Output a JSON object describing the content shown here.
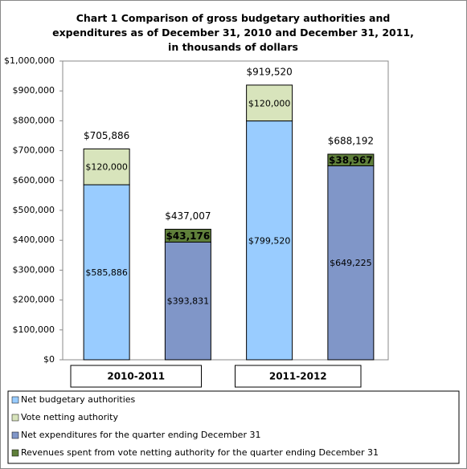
{
  "chart_data": {
    "type": "stacked-bar",
    "title": "Chart 1 Comparison of gross budgetary authorities and expenditures as of December 31, 2010 and December 31, 2011, in thousands of dollars",
    "categories": [
      null,
      null,
      null,
      null
    ],
    "groups": [
      "2010-2011",
      "2011-2012"
    ],
    "ylim": [
      0,
      1000000
    ],
    "yticks": [
      {
        "value": 0,
        "label": "$0"
      },
      {
        "value": 100000,
        "label": "$100,000"
      },
      {
        "value": 200000,
        "label": "$200,000"
      },
      {
        "value": 300000,
        "label": "$300,000"
      },
      {
        "value": 400000,
        "label": "$400,000"
      },
      {
        "value": 500000,
        "label": "$500,000"
      },
      {
        "value": 600000,
        "label": "$600,000"
      },
      {
        "value": 700000,
        "label": "$700,000"
      },
      {
        "value": 800000,
        "label": "$800,000"
      },
      {
        "value": 900000,
        "label": "$900,000"
      },
      {
        "value": 1000000,
        "label": "$1,000,000"
      }
    ],
    "grid": false,
    "series": [
      {
        "name": "Net budgetary authorities",
        "color": "#99ccff",
        "values": [
          585886,
          null,
          799520,
          null
        ],
        "value_labels": [
          "$585,886",
          null,
          "$799,520",
          null
        ]
      },
      {
        "name": "Vote netting authority",
        "color": "#d8e4bc",
        "values": [
          120000,
          null,
          120000,
          null
        ],
        "value_labels": [
          "$120,000",
          null,
          "$120,000",
          null
        ]
      },
      {
        "name": "Net expenditures for the quarter ending December 31",
        "color": "#8096c8",
        "values": [
          null,
          393831,
          null,
          649225
        ],
        "value_labels": [
          null,
          "$393,831",
          null,
          "$649,225"
        ]
      },
      {
        "name": "Revenues spent from vote netting authority for the quarter ending December 31",
        "color": "#5f7f3a",
        "values": [
          null,
          43176,
          null,
          38967
        ],
        "value_labels": [
          null,
          "$43,176",
          null,
          "$38,967"
        ]
      }
    ],
    "totals": [
      705886,
      437007,
      919520,
      688192
    ],
    "total_labels": [
      "$705,886",
      "$437,007",
      "$919,520",
      "$688,192"
    ]
  }
}
